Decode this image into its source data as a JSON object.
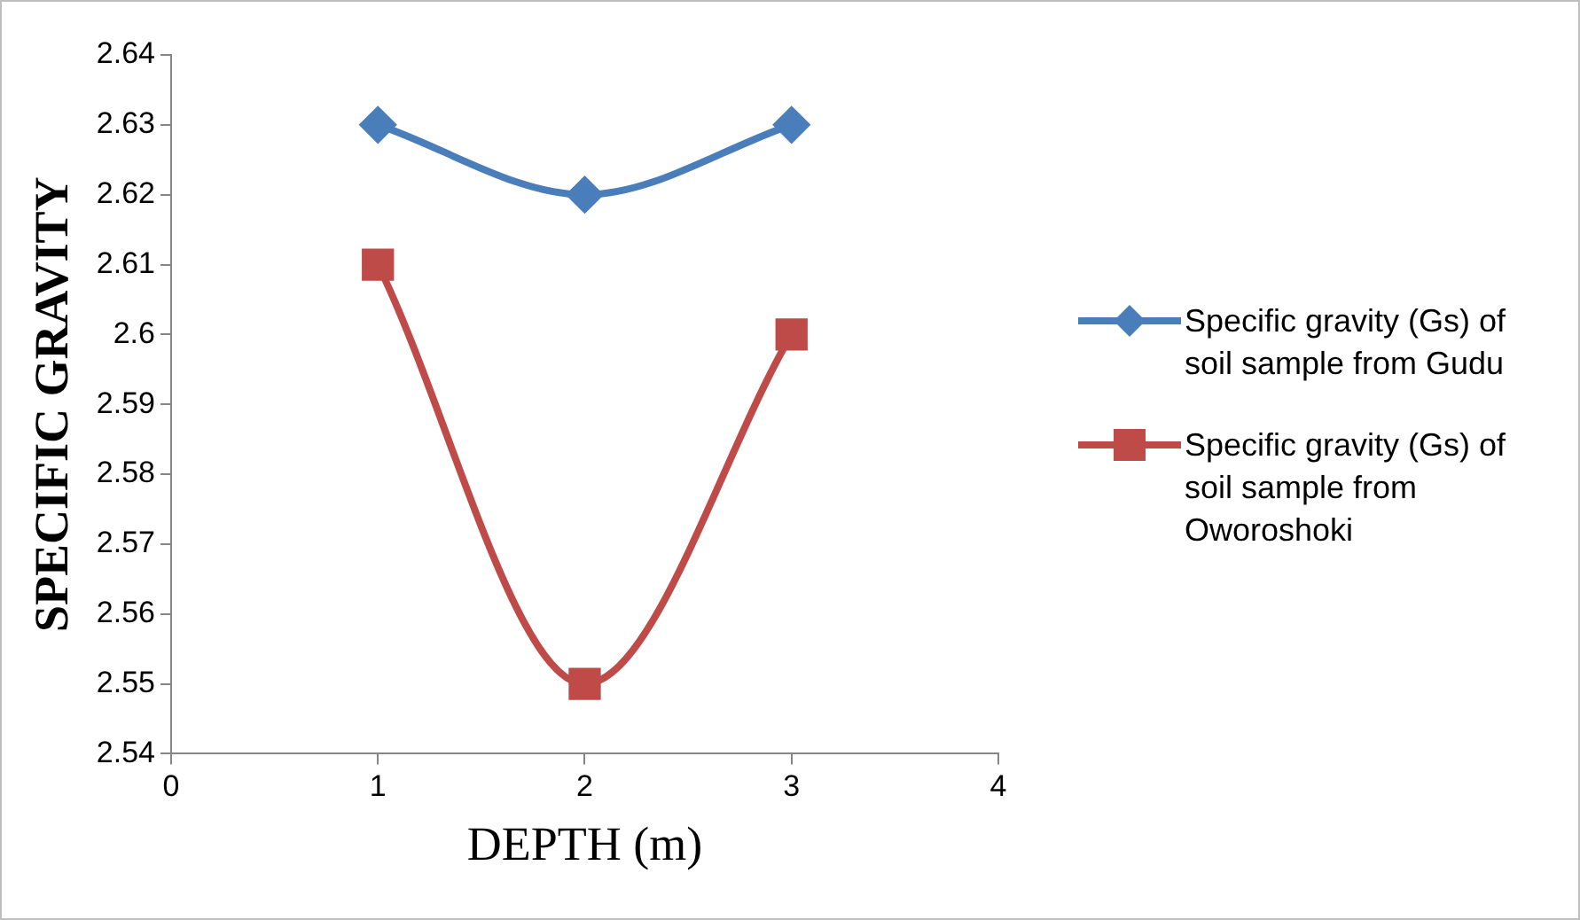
{
  "chart_data": {
    "type": "line",
    "xlabel": "DEPTH (m)",
    "ylabel": "SPECIFIC GRAVITY",
    "x": [
      1,
      2,
      3
    ],
    "series": [
      {
        "name": "Specific gravity (Gs) of soil sample from Gudu",
        "color": "#4a7ebb",
        "marker": "diamond",
        "values": [
          2.63,
          2.62,
          2.63
        ]
      },
      {
        "name": "Specific gravity (Gs) of soil sample from Oworoshoki",
        "color": "#be4b48",
        "marker": "square",
        "values": [
          2.61,
          2.55,
          2.6
        ]
      }
    ],
    "xlim": [
      0,
      4
    ],
    "xticks": [
      0,
      1,
      2,
      3,
      4
    ],
    "ylim": [
      2.54,
      2.64
    ],
    "yticks": [
      2.54,
      2.55,
      2.56,
      2.57,
      2.58,
      2.59,
      2.6,
      2.61,
      2.62,
      2.63,
      2.64
    ],
    "grid": false,
    "legend": "right",
    "line_style": "solid"
  }
}
